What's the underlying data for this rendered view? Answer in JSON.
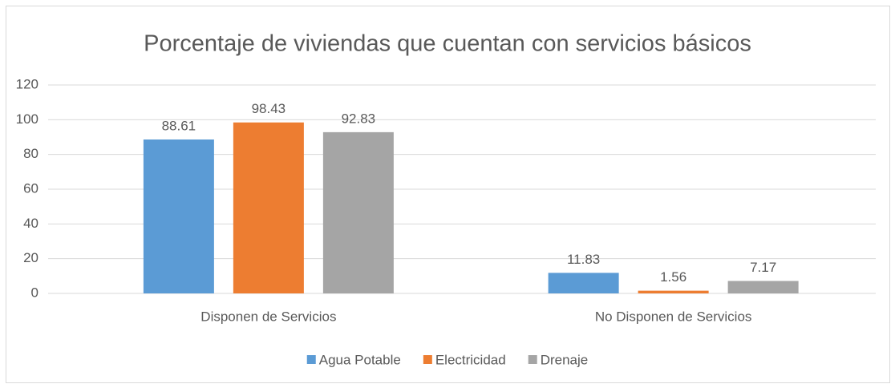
{
  "chart_data": {
    "type": "bar",
    "title": "Porcentaje de viviendas que cuentan con servicios básicos",
    "categories": [
      "Disponen de Servicios",
      "No Disponen de Servicios"
    ],
    "series": [
      {
        "name": "Agua Potable",
        "color": "#5b9bd5",
        "values": [
          88.61,
          11.83
        ]
      },
      {
        "name": "Electricidad",
        "color": "#ed7d31",
        "values": [
          98.43,
          1.56
        ]
      },
      {
        "name": "Drenaje",
        "color": "#a5a5a5",
        "values": [
          92.83,
          7.17
        ]
      }
    ],
    "ylim": [
      0,
      120
    ],
    "yticks": [
      0,
      20,
      40,
      60,
      80,
      100,
      120
    ],
    "grid": true,
    "legend": "bottom"
  }
}
